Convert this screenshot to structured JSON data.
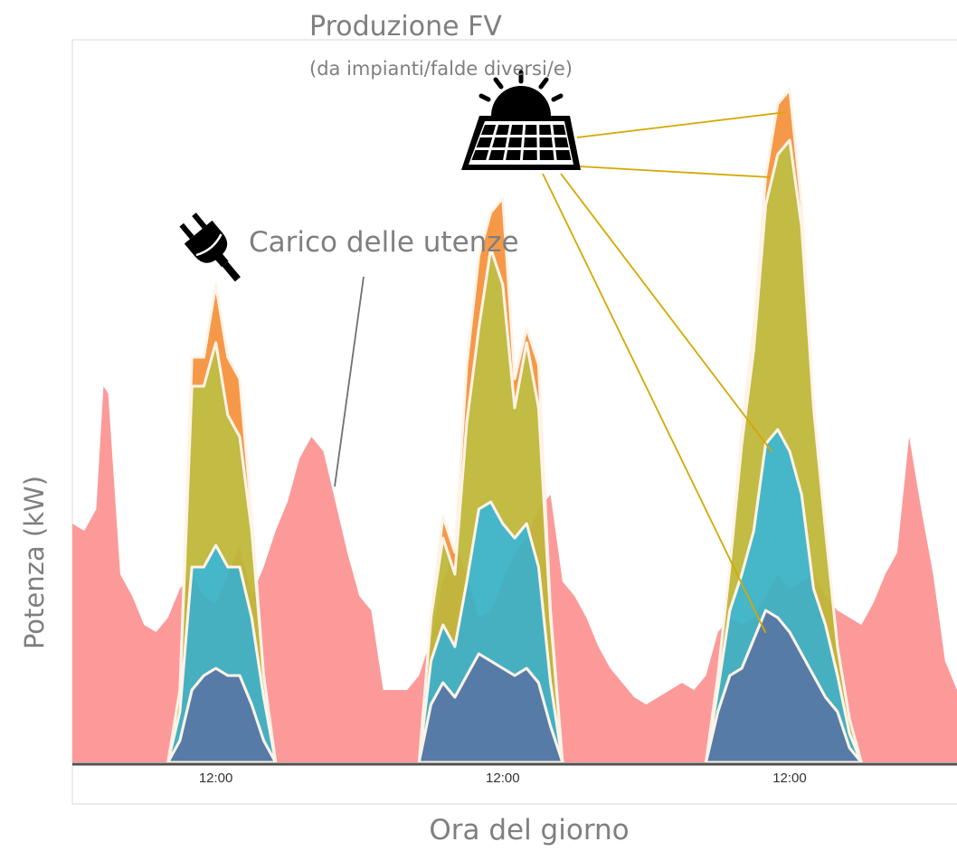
{
  "chart_data": {
    "type": "area",
    "title": "Produzione FV",
    "subtitle": "(da impianti/falde diversi/e)",
    "load_annotation": "Carico delle utenze",
    "xlabel": "Ora del giorno",
    "ylabel": "Potenza (kW)",
    "x_ticks": [
      {
        "label": "12:00",
        "x": 12
      },
      {
        "label": "12:00",
        "x": 36
      },
      {
        "label": "12:00",
        "x": 60
      }
    ],
    "xlim": [
      0,
      74
    ],
    "ylim": [
      0,
      10
    ],
    "grid": false,
    "load_series": {
      "name": "",
      "color": "#fc9a9a",
      "points": [
        [
          0,
          3.3
        ],
        [
          1,
          3.2
        ],
        [
          2,
          3.5
        ],
        [
          2.6,
          5.2
        ],
        [
          3,
          5.1
        ],
        [
          4,
          2.6
        ],
        [
          5,
          2.3
        ],
        [
          6,
          1.9
        ],
        [
          7,
          1.8
        ],
        [
          8,
          2.0
        ],
        [
          9,
          2.4
        ],
        [
          10,
          2.6
        ],
        [
          11,
          2.3
        ],
        [
          12,
          2.2
        ],
        [
          13,
          2.6
        ],
        [
          14,
          3.0
        ],
        [
          15,
          2.3
        ],
        [
          16,
          2.7
        ],
        [
          17,
          3.2
        ],
        [
          18,
          3.6
        ],
        [
          19,
          4.2
        ],
        [
          20,
          4.5
        ],
        [
          21,
          4.3
        ],
        [
          22,
          3.6
        ],
        [
          23,
          2.9
        ],
        [
          24,
          2.3
        ],
        [
          25,
          2.1
        ],
        [
          26,
          1.0
        ],
        [
          27,
          1.0
        ],
        [
          28,
          1.0
        ],
        [
          29,
          1.2
        ],
        [
          30,
          1.7
        ],
        [
          31,
          2.5
        ],
        [
          32,
          3.0
        ],
        [
          33,
          2.6
        ],
        [
          34,
          2.0
        ],
        [
          35,
          2.1
        ],
        [
          36,
          2.5
        ],
        [
          37,
          2.9
        ],
        [
          38,
          3.1
        ],
        [
          39,
          3.5
        ],
        [
          40,
          3.7
        ],
        [
          41,
          2.5
        ],
        [
          42,
          2.3
        ],
        [
          43,
          2.0
        ],
        [
          44,
          1.6
        ],
        [
          45,
          1.3
        ],
        [
          46,
          1.1
        ],
        [
          47,
          0.9
        ],
        [
          48,
          0.8
        ],
        [
          49,
          0.9
        ],
        [
          50,
          1.0
        ],
        [
          51,
          1.1
        ],
        [
          52,
          1.0
        ],
        [
          53,
          1.2
        ],
        [
          54,
          1.8
        ],
        [
          55,
          2.0
        ],
        [
          56,
          1.9
        ],
        [
          57,
          2.0
        ],
        [
          58,
          2.3
        ],
        [
          59,
          2.6
        ],
        [
          60,
          2.4
        ],
        [
          61,
          2.5
        ],
        [
          62,
          2.6
        ],
        [
          63,
          2.3
        ],
        [
          64,
          2.1
        ],
        [
          65,
          2.0
        ],
        [
          66,
          1.9
        ],
        [
          67,
          2.2
        ],
        [
          68,
          2.6
        ],
        [
          69,
          2.9
        ],
        [
          70,
          4.5
        ],
        [
          71,
          3.5
        ],
        [
          72,
          2.6
        ],
        [
          73,
          1.4
        ],
        [
          74,
          1.0
        ]
      ]
    },
    "pv_days": [
      {
        "x": [
          8,
          9,
          10,
          11,
          12,
          13,
          14,
          15,
          16,
          17
        ],
        "layers": [
          {
            "name": "",
            "color": "#4a79a8",
            "values": [
              0,
              0.3,
              1.0,
              1.2,
              1.3,
              1.2,
              1.2,
              0.8,
              0.3,
              0
            ]
          },
          {
            "name": "",
            "color": "#38b2c4",
            "values": [
              0,
              0.4,
              1.7,
              1.5,
              1.7,
              1.5,
              1.5,
              1.2,
              0.6,
              0
            ]
          },
          {
            "name": "",
            "color": "#bdb636",
            "values": [
              0,
              0.3,
              2.5,
              2.5,
              2.8,
              2.1,
              1.8,
              1.2,
              0.3,
              0
            ]
          },
          {
            "name": "",
            "color": "#f4913a",
            "values": [
              0,
              0,
              0.4,
              0.4,
              0.8,
              0.8,
              0.8,
              0.2,
              0,
              0
            ]
          }
        ]
      },
      {
        "x": [
          29,
          30,
          31,
          32,
          33,
          34,
          35,
          36,
          37,
          38,
          39,
          40,
          41
        ],
        "layers": [
          {
            "name": "",
            "color": "#4a79a8",
            "values": [
              0,
              0.8,
              1.1,
              0.9,
              1.2,
              1.5,
              1.4,
              1.3,
              1.2,
              1.3,
              1.1,
              0.5,
              0
            ]
          },
          {
            "name": "",
            "color": "#38b2c4",
            "values": [
              0,
              0.6,
              0.8,
              0.7,
              1.3,
              2.0,
              2.2,
              2.0,
              1.9,
              2.0,
              1.6,
              0.6,
              0
            ]
          },
          {
            "name": "",
            "color": "#bdb636",
            "values": [
              0,
              0.6,
              1.2,
              1.0,
              2.2,
              2.5,
              3.5,
              3.3,
              1.8,
              2.5,
              2.2,
              0.9,
              0
            ]
          },
          {
            "name": "",
            "color": "#f4913a",
            "values": [
              0,
              0,
              0.3,
              0.3,
              0.8,
              1.0,
              0.5,
              1.2,
              0.4,
              0.2,
              0.6,
              0.1,
              0
            ]
          }
        ]
      },
      {
        "x": [
          53,
          54,
          55,
          56,
          57,
          58,
          59,
          60,
          61,
          62,
          63,
          64,
          65,
          66
        ],
        "layers": [
          {
            "name": "",
            "color": "#4a79a8",
            "values": [
              0,
              0.7,
              1.2,
              1.3,
              1.7,
              2.1,
              2.0,
              1.8,
              1.5,
              1.2,
              0.9,
              0.7,
              0.2,
              0
            ]
          },
          {
            "name": "",
            "color": "#38b2c4",
            "values": [
              0,
              0.3,
              0.9,
              1.3,
              1.5,
              2.3,
              2.6,
              2.5,
              2.2,
              1.2,
              1.0,
              0.5,
              0.2,
              0
            ]
          },
          {
            "name": "",
            "color": "#bdb636",
            "values": [
              0,
              0.2,
              0.6,
              1.8,
              2.5,
              3.3,
              3.8,
              4.3,
              3.7,
              2.5,
              1.3,
              0.4,
              0.2,
              0
            ]
          },
          {
            "name": "",
            "color": "#f4913a",
            "values": [
              0,
              0,
              0,
              0.2,
              0.3,
              0.4,
              0.7,
              0.7,
              0.3,
              0,
              0,
              0,
              0,
              0
            ]
          }
        ]
      }
    ],
    "colors": {
      "axis": "#505050",
      "frame": "#d9d9d9",
      "pointer_line": "#d4a800",
      "load_pointer": "#707070",
      "layer_edge": "#fff3e8"
    },
    "icons": [
      "solar-panel-icon",
      "plug-icon"
    ]
  }
}
